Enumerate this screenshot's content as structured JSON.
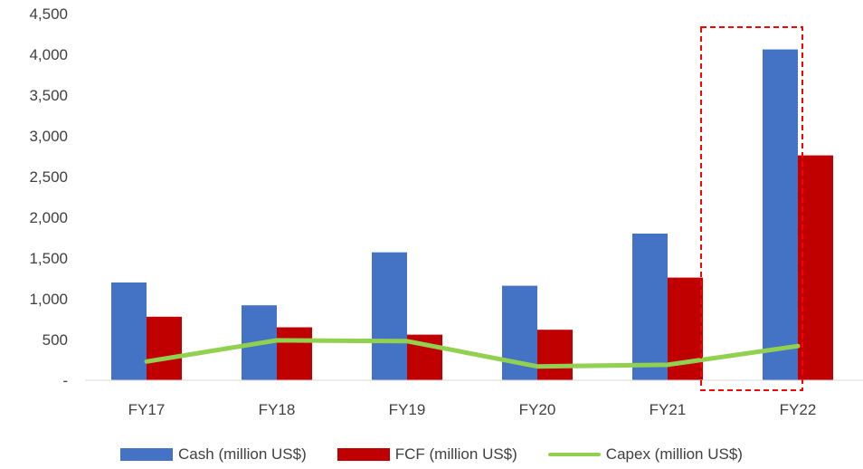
{
  "chart_data": {
    "type": "bar",
    "title": "",
    "xlabel": "",
    "ylabel": "",
    "categories": [
      "FY17",
      "FY18",
      "FY19",
      "FY20",
      "FY21",
      "FY22"
    ],
    "ylim": [
      0,
      4500
    ],
    "yticks": [
      {
        "value": 0,
        "label": "-"
      },
      {
        "value": 500,
        "label": "500"
      },
      {
        "value": 1000,
        "label": "1,000"
      },
      {
        "value": 1500,
        "label": "1,500"
      },
      {
        "value": 2000,
        "label": "2,000"
      },
      {
        "value": 2500,
        "label": "2,500"
      },
      {
        "value": 3000,
        "label": "3,000"
      },
      {
        "value": 3500,
        "label": "3,500"
      },
      {
        "value": 4000,
        "label": "4,000"
      },
      {
        "value": 4500,
        "label": "4,500"
      }
    ],
    "series": [
      {
        "name": "Cash (million US$)",
        "kind": "bar",
        "color": "#4472C4",
        "values": [
          1200,
          920,
          1570,
          1160,
          1800,
          4060
        ]
      },
      {
        "name": "FCF (million US$)",
        "kind": "bar",
        "color": "#C00000",
        "values": [
          780,
          650,
          560,
          620,
          1260,
          2760
        ]
      },
      {
        "name": "Capex (million US$)",
        "kind": "line",
        "color": "#92D050",
        "values": [
          230,
          490,
          480,
          170,
          190,
          420
        ]
      }
    ],
    "highlight": {
      "category": "FY22",
      "style": "dashed",
      "color": "#FF0000"
    },
    "grid": false,
    "legend_position": "bottom"
  }
}
